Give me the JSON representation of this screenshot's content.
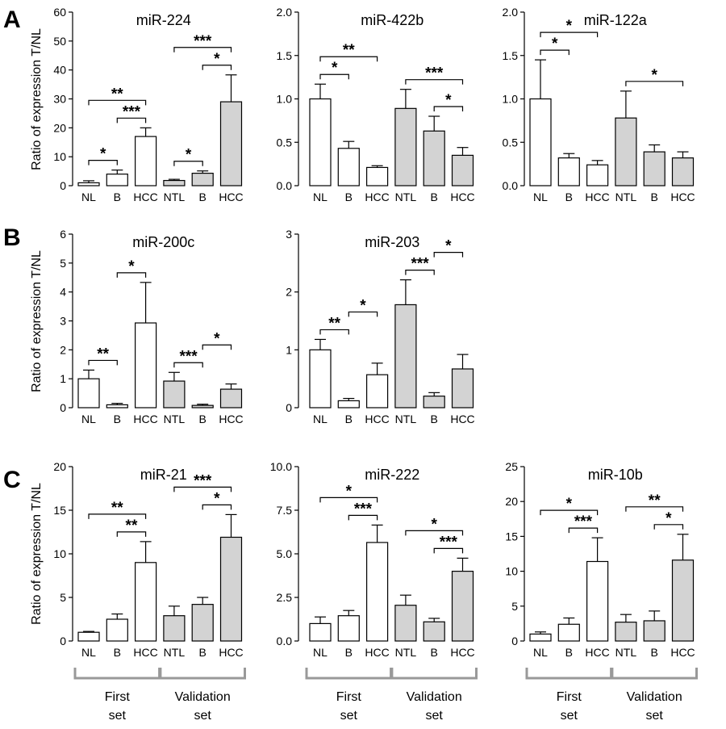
{
  "panel_labels": [
    "A",
    "B",
    "C"
  ],
  "ylabel": "Ratio of expression T/NL",
  "group_labels": [
    [
      "First",
      "set"
    ],
    [
      "Validation",
      "set"
    ]
  ],
  "colors": {
    "first_set_fill": "#ffffff",
    "validation_set_fill": "#d3d3d3",
    "bracket": "#999999",
    "stroke": "#000000"
  },
  "chart_data": [
    {
      "type": "bar",
      "panel": "A",
      "title": "miR-224",
      "categories": [
        "NL",
        "B",
        "HCC",
        "NTL",
        "B",
        "HCC"
      ],
      "values": [
        1.0,
        4.0,
        17.0,
        1.8,
        4.3,
        29.0
      ],
      "errors": [
        0.7,
        1.4,
        3.0,
        0.4,
        0.8,
        9.3
      ],
      "groups": [
        "First set",
        "First set",
        "First set",
        "Validation set",
        "Validation set",
        "Validation set"
      ],
      "ylim": [
        0,
        60
      ],
      "yticks": [
        "0",
        "10",
        "20",
        "30",
        "40",
        "50",
        "60"
      ],
      "significance": [
        {
          "from": 0,
          "to": 1,
          "label": "*"
        },
        {
          "from": 1,
          "to": 2,
          "label": "***"
        },
        {
          "from": 0,
          "to": 2,
          "label": "**"
        },
        {
          "from": 3,
          "to": 4,
          "label": "*"
        },
        {
          "from": 4,
          "to": 5,
          "label": "*"
        },
        {
          "from": 3,
          "to": 5,
          "label": "***"
        }
      ]
    },
    {
      "type": "bar",
      "panel": "A",
      "title": "miR-422b",
      "categories": [
        "NL",
        "B",
        "HCC",
        "NTL",
        "B",
        "HCC"
      ],
      "values": [
        1.0,
        0.43,
        0.21,
        0.89,
        0.63,
        0.35
      ],
      "errors": [
        0.17,
        0.08,
        0.02,
        0.22,
        0.17,
        0.09
      ],
      "groups": [
        "First set",
        "First set",
        "First set",
        "Validation set",
        "Validation set",
        "Validation set"
      ],
      "ylim": [
        0,
        2.0
      ],
      "yticks": [
        "0.0",
        "0.5",
        "1.0",
        "1.5",
        "2.0"
      ],
      "significance": [
        {
          "from": 0,
          "to": 1,
          "label": "*"
        },
        {
          "from": 0,
          "to": 2,
          "label": "**"
        },
        {
          "from": 4,
          "to": 5,
          "label": "*"
        },
        {
          "from": 3,
          "to": 5,
          "label": "***"
        }
      ]
    },
    {
      "type": "bar",
      "panel": "A",
      "title": "miR-122a",
      "categories": [
        "NL",
        "B",
        "HCC",
        "NTL",
        "B",
        "HCC"
      ],
      "values": [
        1.0,
        0.32,
        0.24,
        0.78,
        0.39,
        0.32
      ],
      "errors": [
        0.45,
        0.05,
        0.05,
        0.31,
        0.08,
        0.07
      ],
      "groups": [
        "First set",
        "First set",
        "First set",
        "Validation set",
        "Validation set",
        "Validation set"
      ],
      "ylim": [
        0,
        2.0
      ],
      "yticks": [
        "0.0",
        "0.5",
        "1.0",
        "1.5",
        "2.0"
      ],
      "significance": [
        {
          "from": 0,
          "to": 1,
          "label": "*"
        },
        {
          "from": 0,
          "to": 2,
          "label": "*"
        },
        {
          "from": 3,
          "to": 5,
          "label": "*"
        }
      ]
    },
    {
      "type": "bar",
      "panel": "B",
      "title": "miR-200c",
      "categories": [
        "NL",
        "B",
        "HCC",
        "NTL",
        "B",
        "HCC"
      ],
      "values": [
        1.0,
        0.1,
        2.93,
        0.92,
        0.08,
        0.64
      ],
      "errors": [
        0.3,
        0.05,
        1.4,
        0.3,
        0.04,
        0.18
      ],
      "groups": [
        "First set",
        "First set",
        "First set",
        "Validation set",
        "Validation set",
        "Validation set"
      ],
      "ylim": [
        0,
        6
      ],
      "yticks": [
        "0",
        "1",
        "2",
        "3",
        "4",
        "5",
        "6"
      ],
      "significance": [
        {
          "from": 0,
          "to": 1,
          "label": "**"
        },
        {
          "from": 1,
          "to": 2,
          "label": "*"
        },
        {
          "from": 3,
          "to": 4,
          "label": "***"
        },
        {
          "from": 4,
          "to": 5,
          "label": "*"
        }
      ]
    },
    {
      "type": "bar",
      "panel": "B",
      "title": "miR-203",
      "categories": [
        "NL",
        "B",
        "HCC",
        "NTL",
        "B",
        "HCC"
      ],
      "values": [
        1.0,
        0.12,
        0.57,
        1.78,
        0.2,
        0.67
      ],
      "errors": [
        0.18,
        0.04,
        0.2,
        0.43,
        0.06,
        0.25
      ],
      "groups": [
        "First set",
        "First set",
        "First set",
        "Validation set",
        "Validation set",
        "Validation set"
      ],
      "ylim": [
        0,
        3
      ],
      "yticks": [
        "0",
        "1",
        "2",
        "3"
      ],
      "significance": [
        {
          "from": 0,
          "to": 1,
          "label": "**"
        },
        {
          "from": 1,
          "to": 2,
          "label": "*"
        },
        {
          "from": 3,
          "to": 4,
          "label": "***"
        },
        {
          "from": 4,
          "to": 5,
          "label": "*"
        }
      ]
    },
    {
      "type": "bar",
      "panel": "C",
      "title": "miR-21",
      "categories": [
        "NL",
        "B",
        "HCC",
        "NTL",
        "B",
        "HCC"
      ],
      "values": [
        1.0,
        2.5,
        9.0,
        2.9,
        4.2,
        11.9
      ],
      "errors": [
        0.1,
        0.6,
        2.4,
        1.1,
        0.8,
        2.6
      ],
      "groups": [
        "First set",
        "First set",
        "First set",
        "Validation set",
        "Validation set",
        "Validation set"
      ],
      "ylim": [
        0,
        20
      ],
      "yticks": [
        "0",
        "5",
        "10",
        "15",
        "20"
      ],
      "significance": [
        {
          "from": 1,
          "to": 2,
          "label": "**"
        },
        {
          "from": 0,
          "to": 2,
          "label": "**"
        },
        {
          "from": 4,
          "to": 5,
          "label": "*"
        },
        {
          "from": 3,
          "to": 5,
          "label": "***"
        }
      ]
    },
    {
      "type": "bar",
      "panel": "C",
      "title": "miR-222",
      "categories": [
        "NL",
        "B",
        "HCC",
        "NTL",
        "B",
        "HCC"
      ],
      "values": [
        1.0,
        1.45,
        5.65,
        2.05,
        1.1,
        4.0
      ],
      "errors": [
        0.38,
        0.3,
        1.0,
        0.58,
        0.2,
        0.75
      ],
      "groups": [
        "First set",
        "First set",
        "First set",
        "Validation set",
        "Validation set",
        "Validation set"
      ],
      "ylim": [
        0,
        10.0
      ],
      "yticks": [
        "0.0",
        "2.5",
        "5.0",
        "7.5",
        "10.0"
      ],
      "significance": [
        {
          "from": 1,
          "to": 2,
          "label": "***"
        },
        {
          "from": 0,
          "to": 2,
          "label": "*"
        },
        {
          "from": 4,
          "to": 5,
          "label": "***"
        },
        {
          "from": 3,
          "to": 5,
          "label": "*"
        }
      ]
    },
    {
      "type": "bar",
      "panel": "C",
      "title": "miR-10b",
      "categories": [
        "NL",
        "B",
        "HCC",
        "NTL",
        "B",
        "HCC"
      ],
      "values": [
        1.0,
        2.4,
        11.4,
        2.7,
        2.9,
        11.6
      ],
      "errors": [
        0.3,
        0.9,
        3.4,
        1.1,
        1.4,
        3.7
      ],
      "groups": [
        "First set",
        "First set",
        "First set",
        "Validation set",
        "Validation set",
        "Validation set"
      ],
      "ylim": [
        0,
        25
      ],
      "yticks": [
        "0",
        "5",
        "10",
        "15",
        "20",
        "25"
      ],
      "significance": [
        {
          "from": 1,
          "to": 2,
          "label": "***"
        },
        {
          "from": 0,
          "to": 2,
          "label": "*"
        },
        {
          "from": 4,
          "to": 5,
          "label": "*"
        },
        {
          "from": 3,
          "to": 5,
          "label": "**"
        }
      ]
    }
  ]
}
